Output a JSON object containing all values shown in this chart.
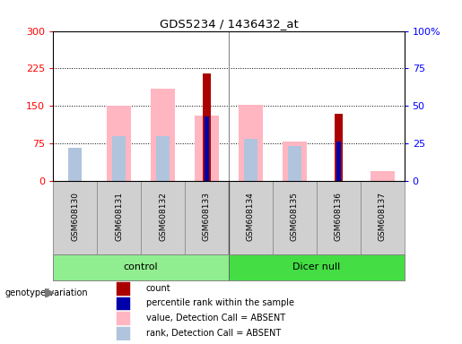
{
  "title": "GDS5234 / 1436432_at",
  "samples": [
    "GSM608130",
    "GSM608131",
    "GSM608132",
    "GSM608133",
    "GSM608134",
    "GSM608135",
    "GSM608136",
    "GSM608137"
  ],
  "groups": [
    {
      "name": "control",
      "color": "#90EE90",
      "samples": [
        0,
        1,
        2,
        3
      ]
    },
    {
      "name": "Dicer null",
      "color": "#44DD44",
      "samples": [
        4,
        5,
        6,
        7
      ]
    }
  ],
  "count_values": [
    0,
    0,
    0,
    215,
    0,
    0,
    135,
    0
  ],
  "percentile_rank_values": [
    0,
    0,
    0,
    43,
    0,
    0,
    26,
    0
  ],
  "absent_value_values": [
    0,
    150,
    185,
    130,
    152,
    78,
    0,
    20
  ],
  "absent_rank_values": [
    22,
    30,
    30,
    0,
    28,
    23,
    0,
    0
  ],
  "left_ylim": [
    0,
    300
  ],
  "right_ylim": [
    0,
    100
  ],
  "left_yticks": [
    0,
    75,
    150,
    225,
    300
  ],
  "right_yticks": [
    0,
    25,
    50,
    75,
    100
  ],
  "right_yticklabels": [
    "0",
    "25",
    "50",
    "75",
    "100%"
  ],
  "bar_width": 0.5,
  "plot_bg": "#ffffff",
  "sample_label_bg": "#d0d0d0",
  "count_color": "#AA0000",
  "percentile_color": "#0000AA",
  "absent_value_color": "#FFB6C1",
  "absent_rank_color": "#B0C4DE",
  "legend_items": [
    {
      "label": "count",
      "color": "#AA0000"
    },
    {
      "label": "percentile rank within the sample",
      "color": "#0000AA"
    },
    {
      "label": "value, Detection Call = ABSENT",
      "color": "#FFB6C1"
    },
    {
      "label": "rank, Detection Call = ABSENT",
      "color": "#B0C4DE"
    }
  ],
  "genotype_label": "genotype/variation",
  "figsize": [
    5.15,
    3.84
  ],
  "dpi": 100
}
